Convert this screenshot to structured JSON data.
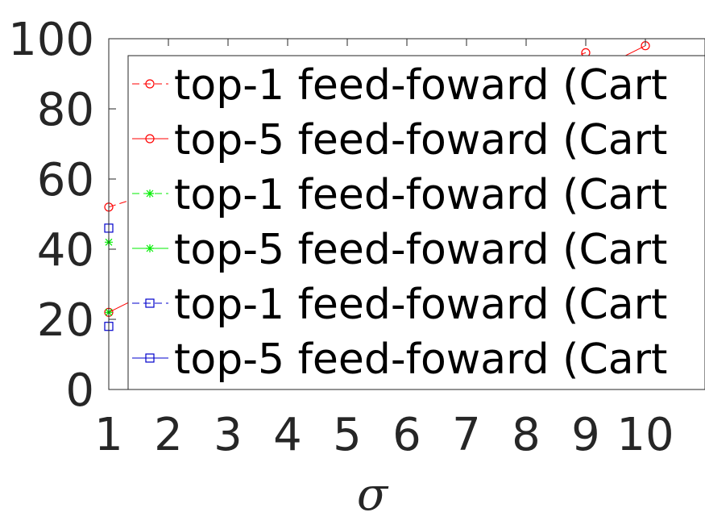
{
  "chart_data": {
    "type": "line",
    "title": "",
    "xlabel": "σ",
    "ylabel": "",
    "xlim": [
      1,
      11
    ],
    "ylim": [
      0,
      100
    ],
    "x_ticks": [
      "1",
      "2",
      "3",
      "4",
      "5",
      "6",
      "7",
      "8",
      "9",
      "10"
    ],
    "y_ticks": [
      "0",
      "20",
      "40",
      "60",
      "80",
      "100"
    ],
    "grid": false,
    "legend_position": "top-right",
    "series": [
      {
        "name": "top-1 feed-foward (Cart",
        "color": "#ff0000",
        "marker": "circle",
        "line": "dashed",
        "x": [
          1,
          9
        ],
        "y": [
          52,
          96
        ]
      },
      {
        "name": "top-5 feed-foward (Cart",
        "color": "#ff0000",
        "marker": "circle",
        "line": "solid",
        "x": [
          1,
          10
        ],
        "y": [
          22,
          98
        ]
      },
      {
        "name": "top-1 feed-foward (Cart",
        "color": "#00ee00",
        "marker": "asterisk",
        "line": "dashed",
        "x": [
          1
        ],
        "y": [
          42
        ]
      },
      {
        "name": "top-5 feed-foward (Cart",
        "color": "#00ee00",
        "marker": "asterisk",
        "line": "solid",
        "x": [
          1
        ],
        "y": [
          22
        ]
      },
      {
        "name": "top-1 feed-foward (Cart",
        "color": "#0000cc",
        "marker": "square",
        "line": "dashed",
        "x": [
          1
        ],
        "y": [
          46
        ]
      },
      {
        "name": "top-5 feed-foward (Cart",
        "color": "#0000cc",
        "marker": "square",
        "line": "solid",
        "x": [
          1
        ],
        "y": [
          18
        ]
      }
    ]
  }
}
